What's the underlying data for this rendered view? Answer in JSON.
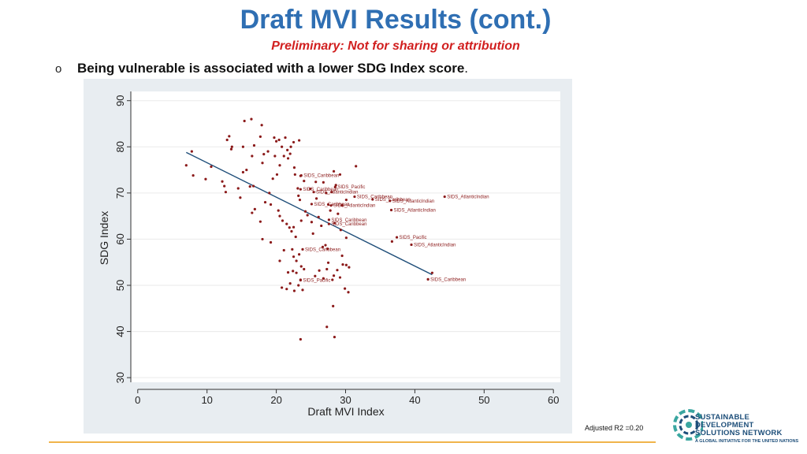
{
  "slide": {
    "title": "Draft MVI Results (cont.)",
    "subtitle": "Preliminary: Not for sharing or attribution",
    "bullet_marker": "o",
    "bullet_text": "Being vulnerable is associated with a lower SDG Index score",
    "bullet_period": ".",
    "note": "Adjusted R2 =0.20"
  },
  "logo": {
    "line1": "SUSTAINABLE DEVELOPMENT",
    "line2": "SOLUTIONS NETWORK",
    "line3": "A GLOBAL INITIATIVE FOR THE UNITED NATIONS",
    "color": "#1e4f7a",
    "accent": "#3aa6a0"
  },
  "colors": {
    "title": "#2f6fb3",
    "subtitle": "#d11f1f",
    "point": "#8b1a1a",
    "fit_line": "#1f4e79",
    "plot_bg": "#ffffff",
    "frame_bg": "#e8edf1",
    "rule": "#f0b44a"
  },
  "chart_data": {
    "type": "scatter",
    "xlabel": "Draft MVI Index",
    "ylabel": "SDG Index",
    "xlim": [
      -1,
      61
    ],
    "ylim": [
      29,
      92
    ],
    "xticks": [
      "0",
      "10",
      "20",
      "30",
      "40",
      "50",
      "60"
    ],
    "yticks": [
      "30",
      "40",
      "50",
      "60",
      "70",
      "80",
      "90"
    ],
    "grid": "horizontal",
    "fit_line": {
      "x": [
        7,
        42.5
      ],
      "y": [
        78.8,
        52.3
      ]
    },
    "points": [
      [
        7,
        76
      ],
      [
        7.8,
        79
      ],
      [
        8,
        73.8
      ],
      [
        9.8,
        73
      ],
      [
        10.6,
        75.7
      ],
      [
        12.2,
        72.5
      ],
      [
        12.5,
        71.5
      ],
      [
        12.7,
        70.2
      ],
      [
        12.9,
        81.5
      ],
      [
        13.2,
        82.3
      ],
      [
        13.5,
        79.5
      ],
      [
        13.6,
        80
      ],
      [
        14.5,
        71
      ],
      [
        14.8,
        69
      ],
      [
        15.2,
        74.5
      ],
      [
        15.2,
        80
      ],
      [
        15.4,
        85.6
      ],
      [
        15.7,
        75
      ],
      [
        16.2,
        71.4
      ],
      [
        16.4,
        86
      ],
      [
        16.5,
        78
      ],
      [
        16.7,
        71.5
      ],
      [
        16.8,
        80.3
      ],
      [
        17.7,
        82.2
      ],
      [
        17.9,
        84.7
      ],
      [
        18,
        76.5
      ],
      [
        18.2,
        78.4
      ],
      [
        18.4,
        68
      ],
      [
        18.8,
        79
      ],
      [
        19,
        70
      ],
      [
        19.2,
        67.5
      ],
      [
        19.5,
        73.1
      ],
      [
        19.7,
        82
      ],
      [
        19.8,
        78
      ],
      [
        20,
        81.2
      ],
      [
        20.1,
        74
      ],
      [
        20.4,
        81.5
      ],
      [
        20.5,
        76
      ],
      [
        20.8,
        80
      ],
      [
        21.1,
        78
      ],
      [
        21.3,
        82
      ],
      [
        21.6,
        79.3
      ],
      [
        21.7,
        77.5
      ],
      [
        22,
        78.5
      ],
      [
        22.1,
        80
      ],
      [
        22.5,
        81
      ],
      [
        22.6,
        75.5
      ],
      [
        22.7,
        74
      ],
      [
        23.3,
        81.4
      ],
      [
        16.9,
        66.5
      ],
      [
        16.5,
        65.7
      ],
      [
        17.7,
        63.8
      ],
      [
        18,
        60
      ],
      [
        19.2,
        59.3
      ],
      [
        20.3,
        66.2
      ],
      [
        20.5,
        65
      ],
      [
        20.9,
        64
      ],
      [
        21.5,
        63.3
      ],
      [
        21.9,
        62.5
      ],
      [
        22.2,
        61.7
      ],
      [
        22.5,
        62.6
      ],
      [
        22.8,
        60.5
      ],
      [
        23.1,
        71
      ],
      [
        23.2,
        69.4
      ],
      [
        23.4,
        68.5
      ],
      [
        23.5,
        73.7
      ],
      [
        23.6,
        64
      ],
      [
        24,
        72.6
      ],
      [
        24.2,
        66
      ],
      [
        24.5,
        65.2
      ],
      [
        24.9,
        70.9
      ],
      [
        25.1,
        63.7
      ],
      [
        25.3,
        61.2
      ],
      [
        25.7,
        72.4
      ],
      [
        25.8,
        68.8
      ],
      [
        26.1,
        64.8
      ],
      [
        26.5,
        62.9
      ],
      [
        26.8,
        72.3
      ],
      [
        27.2,
        70
      ],
      [
        27.5,
        67.5
      ],
      [
        27.8,
        66.2
      ],
      [
        28,
        70.2
      ],
      [
        28.3,
        74.7
      ],
      [
        28.4,
        63.5
      ],
      [
        28.6,
        71.7
      ],
      [
        28.9,
        65.5
      ],
      [
        29.2,
        74
      ],
      [
        29.5,
        67.3
      ],
      [
        30.1,
        68.5
      ],
      [
        31.5,
        75.8
      ],
      [
        21.1,
        57.6
      ],
      [
        22.3,
        57.8
      ],
      [
        22.5,
        56.2
      ],
      [
        22.9,
        55.3
      ],
      [
        23.3,
        56.7
      ],
      [
        23.6,
        54.1
      ],
      [
        20.5,
        55.3
      ],
      [
        21.7,
        52.8
      ],
      [
        22.4,
        53.1
      ],
      [
        22.9,
        52.7
      ],
      [
        23.5,
        51.2
      ],
      [
        24,
        53.5
      ],
      [
        20.8,
        49.5
      ],
      [
        21.5,
        49.2
      ],
      [
        22,
        50.4
      ],
      [
        22.6,
        48.8
      ],
      [
        23.2,
        50
      ],
      [
        23.8,
        49
      ],
      [
        25.6,
        52
      ],
      [
        26.2,
        53.2
      ],
      [
        26.8,
        51.5
      ],
      [
        27.3,
        53.5
      ],
      [
        27.5,
        54.9
      ],
      [
        28.1,
        51.2
      ],
      [
        28.3,
        52.1
      ],
      [
        28.8,
        53.3
      ],
      [
        29.2,
        51.7
      ],
      [
        29.6,
        54.5
      ],
      [
        30.1,
        54.4
      ],
      [
        30.5,
        53.9
      ],
      [
        29.9,
        49.3
      ],
      [
        30.4,
        48.5
      ],
      [
        26.7,
        58.3
      ],
      [
        27.4,
        57.9
      ],
      [
        27.1,
        58.7
      ],
      [
        29.3,
        62
      ],
      [
        30.1,
        60.3
      ],
      [
        29.5,
        56.4
      ],
      [
        28.2,
        45.5
      ],
      [
        27.3,
        41
      ],
      [
        28.4,
        38.8
      ],
      [
        23.5,
        38.3
      ],
      [
        36.7,
        59.5
      ],
      [
        42.5,
        52.7
      ]
    ],
    "labeled_points": [
      {
        "x": 23.6,
        "y": 73.8,
        "label": "SIDS_Caribbean"
      },
      {
        "x": 28.5,
        "y": 71.3,
        "label": "SIDS_Pacific"
      },
      {
        "x": 23.5,
        "y": 70.8,
        "label": "SIDS_Caribbean"
      },
      {
        "x": 25.4,
        "y": 70.2,
        "label": "SIDS_AtlanticIndian"
      },
      {
        "x": 31.3,
        "y": 69.2,
        "label": "SIDS_Caribbean"
      },
      {
        "x": 33.9,
        "y": 68.6,
        "label": "SIDS_Caribbean"
      },
      {
        "x": 44.3,
        "y": 69.2,
        "label": "SIDS_AtlanticIndian"
      },
      {
        "x": 36.4,
        "y": 68.3,
        "label": "SIDS_AtlanticIndian"
      },
      {
        "x": 25.1,
        "y": 67.6,
        "label": "SIDS_Caribbean"
      },
      {
        "x": 27.9,
        "y": 67.3,
        "label": "SIDS_AtlanticIndian"
      },
      {
        "x": 36.6,
        "y": 66.3,
        "label": "SIDS_AtlanticIndian"
      },
      {
        "x": 27.6,
        "y": 64.2,
        "label": "SIDS_Caribbean"
      },
      {
        "x": 27.6,
        "y": 63.3,
        "label": "SIDS_Caribbean"
      },
      {
        "x": 37.4,
        "y": 60.4,
        "label": "SIDS_Pacific"
      },
      {
        "x": 39.5,
        "y": 58.8,
        "label": "SIDS_AtlanticIndian"
      },
      {
        "x": 23.8,
        "y": 57.8,
        "label": "SIDS_Caribbean"
      },
      {
        "x": 41.9,
        "y": 51.3,
        "label": "SIDS_Caribbean"
      },
      {
        "x": 23.5,
        "y": 51.1,
        "label": "SIDS_Pacific"
      }
    ]
  }
}
